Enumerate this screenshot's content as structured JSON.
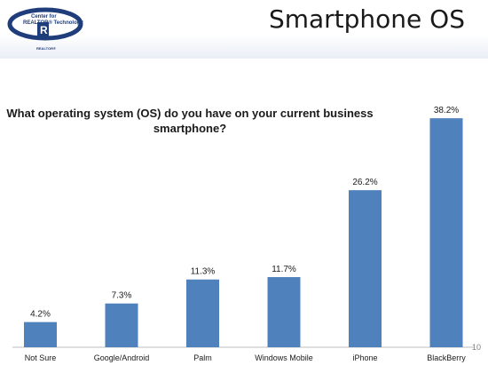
{
  "slide": {
    "title": "Smartphone OS",
    "page_number": "10",
    "logo": {
      "line1": "Center for",
      "line2": "REALTOR® Technology",
      "badge": "REALTOR®",
      "icon": "realtor-r-logo-icon"
    }
  },
  "chart_data": {
    "type": "bar",
    "title": "What operating system (OS) do you have on your current business smartphone?",
    "categories": [
      "Not Sure",
      "Google/Android",
      "Palm",
      "Windows Mobile",
      "iPhone",
      "BlackBerry"
    ],
    "values": [
      4.2,
      7.3,
      11.3,
      11.7,
      26.2,
      38.2
    ],
    "labels": [
      "4.2%",
      "7.3%",
      "11.3%",
      "11.7%",
      "26.2%",
      "38.2%"
    ],
    "unit": "%",
    "ylim": [
      0,
      40
    ],
    "grid": false,
    "legend": "none",
    "bar_color": "#4f81bd"
  }
}
